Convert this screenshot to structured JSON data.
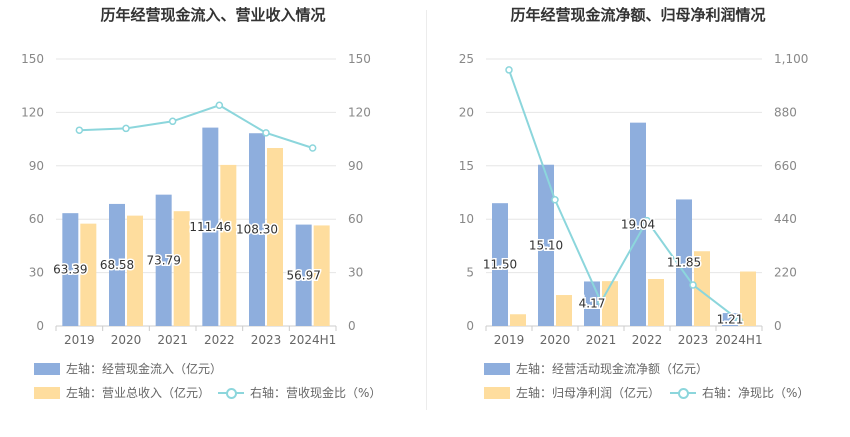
{
  "chart_data": [
    {
      "type": "bar",
      "title": "历年经营现金流入、营业收入情况",
      "categories": [
        "2019",
        "2020",
        "2021",
        "2022",
        "2023",
        "2024H1"
      ],
      "y_left": {
        "ylim": [
          0,
          150
        ],
        "ticks": [
          "0",
          "30",
          "60",
          "90",
          "120",
          "150"
        ]
      },
      "y_right": {
        "ylim": [
          0,
          150
        ],
        "ticks": [
          "0",
          "30",
          "60",
          "90",
          "120",
          "150"
        ]
      },
      "series": [
        {
          "name": "左轴：经营现金流入（亿元）",
          "type": "bar",
          "axis": "left",
          "color": "#8eaedd",
          "values": [
            63.39,
            68.58,
            73.79,
            111.46,
            108.3,
            56.97
          ],
          "labels": [
            "63.39",
            "68.58",
            "73.79",
            "111.46",
            "108.30",
            "56.97"
          ]
        },
        {
          "name": "左轴：营业总收入（亿元）",
          "type": "bar",
          "axis": "left",
          "color": "#fedd9e",
          "values": [
            57.5,
            62,
            64.5,
            90.5,
            100,
            56.5
          ]
        },
        {
          "name": "右轴：营收现金比（%）",
          "type": "line",
          "axis": "right",
          "color": "#8cd6dc",
          "values": [
            110,
            111,
            115,
            124,
            108.5,
            100
          ]
        }
      ]
    },
    {
      "type": "bar",
      "title": "历年经营现金流净额、归母净利润情况",
      "categories": [
        "2019",
        "2020",
        "2021",
        "2022",
        "2023",
        "2024H1"
      ],
      "y_left": {
        "ylim": [
          0,
          25
        ],
        "ticks": [
          "0",
          "5",
          "10",
          "15",
          "20",
          "25"
        ]
      },
      "y_right": {
        "ylim": [
          0,
          1100
        ],
        "ticks": [
          "0",
          "220",
          "440",
          "660",
          "880",
          "1,100"
        ]
      },
      "series": [
        {
          "name": "左轴：经营活动现金流净额（亿元）",
          "type": "bar",
          "axis": "left",
          "color": "#8eaedd",
          "values": [
            11.5,
            15.1,
            4.17,
            19.04,
            11.85,
            1.21
          ],
          "labels": [
            "11.50",
            "15.10",
            "4.17",
            "19.04",
            "11.85",
            "1.21"
          ]
        },
        {
          "name": "左轴：归母净利润（亿元）",
          "type": "bar",
          "axis": "left",
          "color": "#fedd9e",
          "values": [
            1.1,
            2.9,
            4.2,
            4.4,
            7.0,
            5.1
          ]
        },
        {
          "name": "右轴：净现比（%）",
          "type": "line",
          "axis": "right",
          "color": "#8cd6dc",
          "values": [
            1055,
            520,
            99,
            434,
            169,
            24
          ]
        }
      ]
    }
  ]
}
